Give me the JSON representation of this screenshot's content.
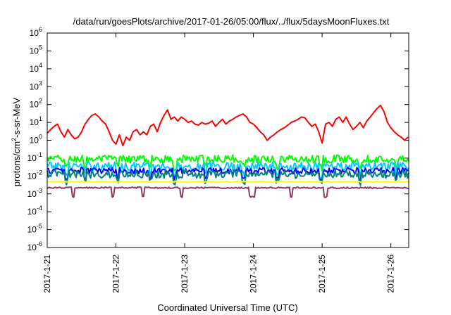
{
  "chart_data": {
    "type": "line",
    "title": "/data/run/goesPlots/archive/2017-01-26/05:00/flux/../flux/5daysMoonFluxes.txt",
    "xlabel": "Coordinated Universal Time (UTC)",
    "ylabel": {
      "prefix": "protons/cm",
      "superscript": "2",
      "suffix": "-s-sr-MeV"
    },
    "y_scale": "log",
    "ylim_exponents": [
      -6,
      6
    ],
    "y_tick_exponents": [
      -6,
      -5,
      -4,
      -3,
      -2,
      -1,
      0,
      1,
      2,
      3,
      4,
      5,
      6
    ],
    "x_ticks": [
      "2017-1-21",
      "2017-1-22",
      "2017-1-23",
      "2017-1-24",
      "2017-1-25",
      "2017-1-26"
    ],
    "xlim_days": [
      0,
      5.26
    ],
    "grid": false,
    "legend": "none",
    "series": [
      {
        "color": "#ff0000",
        "x_days": [
          0,
          0.05,
          0.1,
          0.15,
          0.2,
          0.25,
          0.3,
          0.35,
          0.4,
          0.45,
          0.5,
          0.55,
          0.6,
          0.65,
          0.7,
          0.75,
          0.8,
          0.85,
          0.9,
          0.95,
          1.0,
          1.05,
          1.1,
          1.15,
          1.2,
          1.25,
          1.3,
          1.35,
          1.4,
          1.45,
          1.5,
          1.55,
          1.6,
          1.65,
          1.7,
          1.75,
          1.8,
          1.85,
          1.9,
          1.95,
          2.0,
          2.05,
          2.1,
          2.15,
          2.2,
          2.25,
          2.3,
          2.35,
          2.4,
          2.45,
          2.5,
          2.55,
          2.6,
          2.65,
          2.7,
          2.75,
          2.8,
          2.85,
          2.9,
          2.95,
          3.0,
          3.05,
          3.1,
          3.15,
          3.2,
          3.25,
          3.3,
          3.35,
          3.4,
          3.45,
          3.5,
          3.55,
          3.6,
          3.65,
          3.7,
          3.75,
          3.8,
          3.85,
          3.9,
          3.95,
          4.0,
          4.05,
          4.1,
          4.15,
          4.2,
          4.25,
          4.3,
          4.35,
          4.4,
          4.45,
          4.5,
          4.55,
          4.6,
          4.65,
          4.7,
          4.75,
          4.8,
          4.85,
          4.9,
          4.95,
          5.0,
          5.05,
          5.1,
          5.15,
          5.2,
          5.25
        ],
        "y": [
          2.5,
          4,
          6,
          8,
          3,
          1.5,
          4,
          2,
          1.2,
          1.5,
          3,
          8,
          15,
          25,
          30,
          20,
          12,
          8,
          3,
          1,
          0.6,
          2,
          0.5,
          1.5,
          1,
          3,
          4,
          2,
          3,
          2,
          6,
          8,
          3,
          10,
          25,
          50,
          15,
          20,
          12,
          20,
          15,
          10,
          12,
          8,
          7,
          10,
          8,
          9,
          12,
          6,
          10,
          15,
          8,
          12,
          15,
          20,
          25,
          30,
          20,
          10,
          8,
          5,
          3,
          2,
          1,
          1.5,
          2,
          3,
          4,
          5,
          7,
          10,
          12,
          15,
          20,
          18,
          10,
          6,
          8,
          3,
          0.7,
          8,
          10,
          6,
          15,
          20,
          10,
          20,
          8,
          4,
          6,
          10,
          5,
          12,
          20,
          35,
          60,
          90,
          40,
          10,
          5,
          3,
          2,
          1.5,
          1,
          1.5
        ]
      },
      {
        "color": "#00ff00",
        "base": 0.09,
        "jitter_decades": 0.22,
        "dips": [
          0.28,
          0.55,
          1.02,
          1.5,
          1.86,
          2.3,
          2.86,
          3.35,
          3.98,
          4.55,
          5.07
        ]
      },
      {
        "color": "#00ccff",
        "base": 0.035,
        "jitter_decades": 0.25,
        "dips": [
          0.28,
          0.55,
          1.02,
          1.5,
          1.86,
          2.3,
          2.86,
          3.35,
          3.98,
          4.55,
          5.07
        ]
      },
      {
        "color": "#0000ff",
        "base": 0.02,
        "jitter_decades": 0.18,
        "dips": [
          0.28,
          0.55,
          1.02,
          1.5,
          1.86,
          2.3,
          2.86,
          3.35,
          3.98,
          4.55,
          5.07
        ]
      },
      {
        "color": "#008080",
        "base": 0.013,
        "jitter_decades": 0.24,
        "dips": [
          0.28,
          0.55,
          1.02,
          1.5,
          1.86,
          2.3,
          2.86,
          3.35,
          3.98,
          4.55,
          5.07
        ]
      },
      {
        "color": "#ffff00",
        "base": 0.0048,
        "jitter_decades": 0.02,
        "dips": []
      },
      {
        "color": "#8b3a62",
        "base": 0.0022,
        "jitter_decades": 0.04,
        "dips": [
          0.38,
          0.95,
          1.4,
          1.96,
          2.95,
          3.0,
          3.55,
          4.05
        ]
      }
    ]
  }
}
